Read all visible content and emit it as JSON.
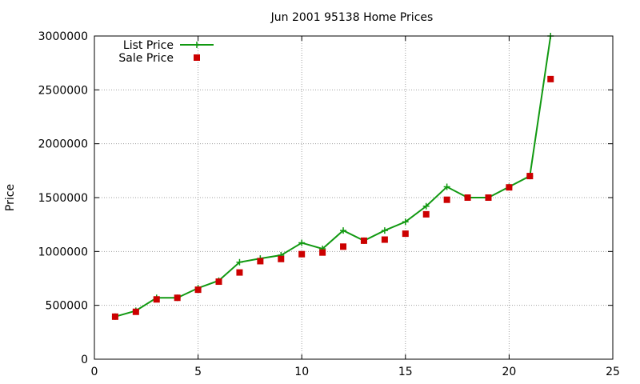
{
  "chart_data": {
    "type": "line",
    "title": "Jun 2001 95138 Home Prices",
    "xlabel": "",
    "ylabel": "Price",
    "xlim": [
      0,
      25
    ],
    "ylim": [
      0,
      3000000
    ],
    "x_ticks": [
      0,
      5,
      10,
      15,
      20,
      25
    ],
    "y_ticks": [
      0,
      500000,
      1000000,
      1500000,
      2000000,
      2500000,
      3000000
    ],
    "x_tick_labels": [
      "0",
      "5",
      "10",
      "15",
      "20",
      "25"
    ],
    "y_tick_labels": [
      "0",
      "500000",
      "1000000",
      "1500000",
      "2000000",
      "2500000",
      "3000000"
    ],
    "grid": true,
    "legend_position": "top-left",
    "series": [
      {
        "name": "List Price",
        "style": "line-with-plus-markers",
        "color": "#119911",
        "x": [
          1,
          2,
          3,
          4,
          5,
          6,
          7,
          8,
          9,
          10,
          11,
          12,
          13,
          14,
          15,
          16,
          17,
          18,
          19,
          20,
          21,
          22
        ],
        "values": [
          395000,
          450000,
          570000,
          570000,
          660000,
          730000,
          900000,
          935000,
          965000,
          1080000,
          1025000,
          1195000,
          1100000,
          1195000,
          1275000,
          1420000,
          1600000,
          1500000,
          1500000,
          1600000,
          1700000,
          3000000
        ]
      },
      {
        "name": "Sale Price",
        "style": "square-markers",
        "color": "#cc0000",
        "x": [
          1,
          2,
          3,
          4,
          5,
          6,
          7,
          8,
          9,
          10,
          11,
          12,
          13,
          14,
          15,
          16,
          17,
          18,
          19,
          20,
          21,
          22
        ],
        "values": [
          395000,
          440000,
          555000,
          570000,
          645000,
          720000,
          805000,
          910000,
          930000,
          975000,
          990000,
          1045000,
          1100000,
          1110000,
          1165000,
          1345000,
          1480000,
          1500000,
          1500000,
          1595000,
          1700000,
          2600000
        ]
      }
    ]
  }
}
